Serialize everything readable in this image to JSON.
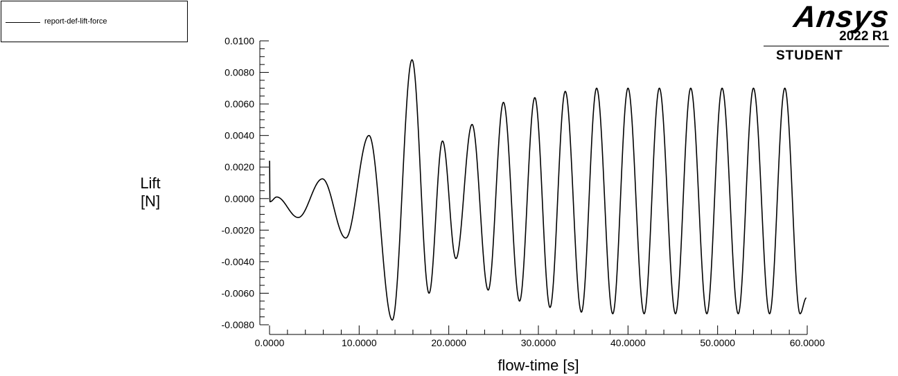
{
  "chart_data": {
    "type": "line",
    "xlabel": "flow-time [s]",
    "ylabel": [
      "Lift",
      "[N]"
    ],
    "xlim": [
      0,
      60
    ],
    "ylim": [
      -0.008,
      0.01
    ],
    "x_ticks": [
      0,
      10,
      20,
      30,
      40,
      50,
      60
    ],
    "x_tick_labels": [
      "0.0000",
      "10.0000",
      "20.0000",
      "30.0000",
      "40.0000",
      "50.0000",
      "60.0000"
    ],
    "y_ticks": [
      -0.008,
      -0.006,
      -0.004,
      -0.002,
      0,
      0.002,
      0.004,
      0.006,
      0.008,
      0.01
    ],
    "y_tick_labels": [
      "-0.0080",
      "-0.0060",
      "-0.0040",
      "-0.0020",
      "0.0000",
      "0.0020",
      "0.0040",
      "0.0060",
      "0.0080",
      "0.0100"
    ],
    "legend_position": "top-left",
    "line_color": "#000000",
    "series": [
      {
        "name": "report-def-lift-force",
        "extrema": [
          [
            0.0,
            0.0024
          ],
          [
            0.05,
            -0.0002
          ],
          [
            0.8,
            0.0001
          ],
          [
            3.2,
            -0.0012
          ],
          [
            5.9,
            0.00125
          ],
          [
            8.5,
            -0.0025
          ],
          [
            11.1,
            0.004
          ],
          [
            13.7,
            -0.0077
          ],
          [
            15.9,
            0.0088
          ],
          [
            17.8,
            -0.006
          ],
          [
            19.3,
            0.00365
          ],
          [
            20.8,
            -0.0038
          ],
          [
            22.6,
            0.0047
          ],
          [
            24.4,
            -0.0058
          ],
          [
            26.1,
            0.0061
          ],
          [
            27.9,
            -0.0065
          ],
          [
            29.6,
            0.0064
          ],
          [
            31.3,
            -0.0069
          ],
          [
            33.0,
            0.0068
          ],
          [
            34.8,
            -0.0072
          ],
          [
            36.5,
            0.007
          ],
          [
            38.3,
            -0.0073
          ],
          [
            40.0,
            0.007
          ],
          [
            41.8,
            -0.0073
          ],
          [
            43.5,
            0.007
          ],
          [
            45.3,
            -0.0073
          ],
          [
            47.0,
            0.007
          ],
          [
            48.8,
            -0.0073
          ],
          [
            50.5,
            0.007
          ],
          [
            52.3,
            -0.0073
          ],
          [
            54.0,
            0.007
          ],
          [
            55.8,
            -0.0073
          ],
          [
            57.5,
            0.007
          ],
          [
            59.2,
            -0.0073
          ],
          [
            59.9,
            -0.0063
          ]
        ]
      }
    ]
  },
  "logo": {
    "wordmark": "Ansys",
    "release": "2022 R1",
    "edition": "STUDENT"
  }
}
